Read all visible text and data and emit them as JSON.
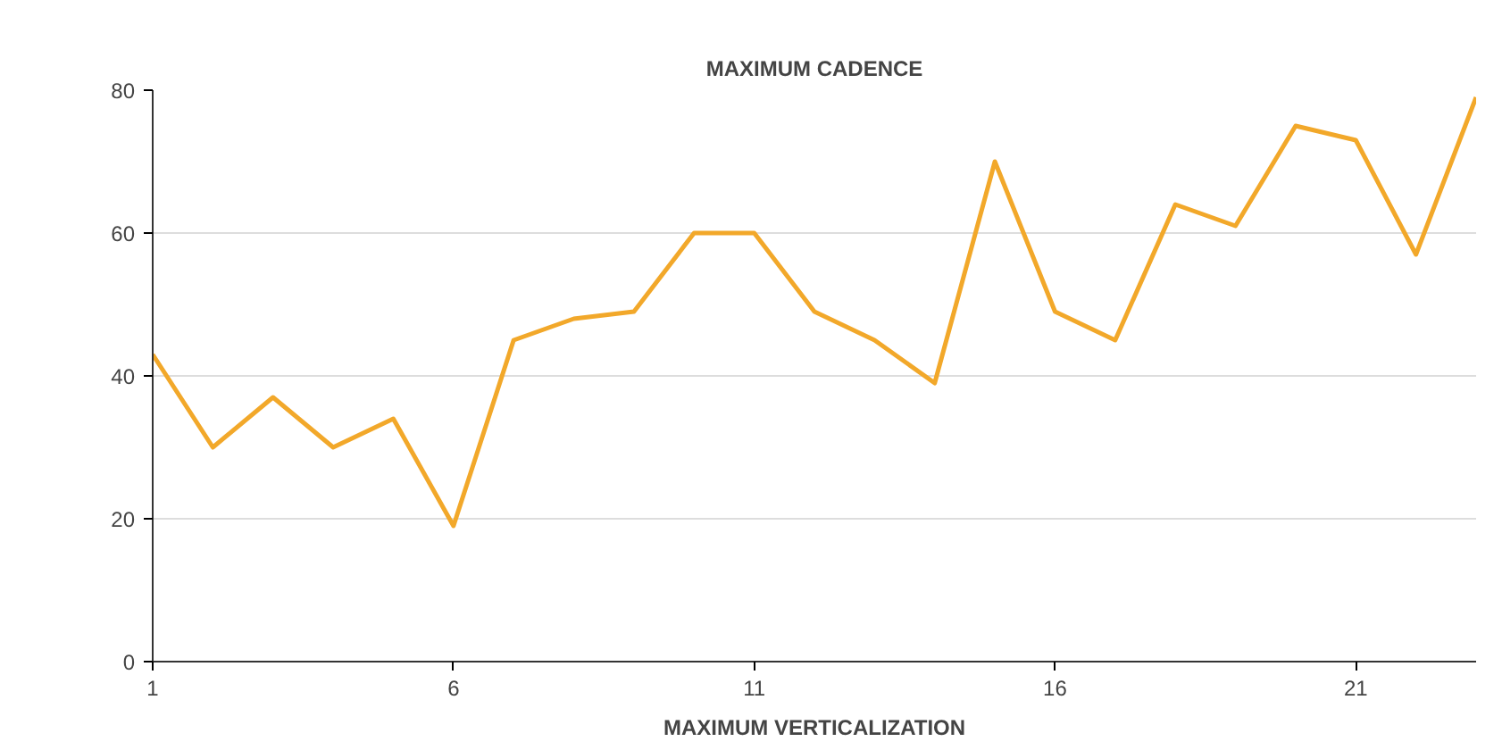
{
  "chart_data": {
    "type": "line",
    "title": "MAXIMUM CADENCE",
    "x": [
      1,
      2,
      3,
      4,
      5,
      6,
      7,
      8,
      9,
      10,
      11,
      12,
      13,
      14,
      15,
      16,
      17,
      18,
      19,
      20,
      21,
      22,
      23
    ],
    "series": [
      {
        "color": "#f2a82a",
        "values": [
          43,
          30,
          37,
          30,
          34,
          19,
          45,
          48,
          49,
          60,
          60,
          49,
          45,
          39,
          70,
          49,
          45,
          64,
          61,
          75,
          73,
          57,
          79
        ]
      }
    ],
    "xlim": [
      1,
      23
    ],
    "xticks": [
      1,
      6,
      11,
      16,
      21
    ],
    "ylim": [
      0,
      80
    ],
    "yticks": [
      0,
      20,
      40,
      60,
      80
    ],
    "grid": "y",
    "marker": "none",
    "line_style": "solid",
    "annotations": [
      "MAXIMUM VERTICALIZATION"
    ]
  }
}
